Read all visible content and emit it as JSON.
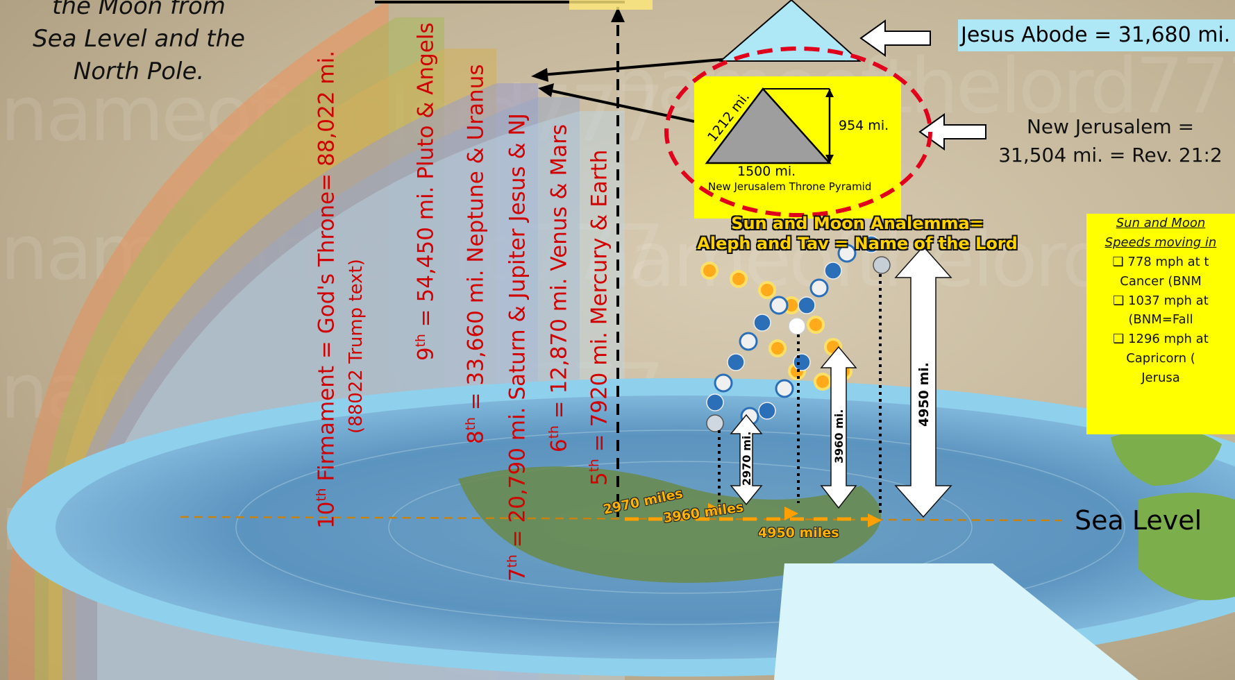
{
  "note_moon": {
    "line1": "the Moon from",
    "line2": "Sea Level and the",
    "line3": "North Pole."
  },
  "watermark": "nameofthelord777",
  "bands": [
    {
      "level": "10",
      "text": "Firmament = God's Throne= 88,022 mi.",
      "color": "#e59a6b"
    },
    {
      "level": "9",
      "text": "= 54,450 mi. Pluto & Angels",
      "color": "#9bbf8a"
    },
    {
      "level": "8",
      "text": "= 33,660 mi. Neptune & Uranus",
      "color": "#d8b86d"
    },
    {
      "level": "7",
      "text": "= 20,790 mi. Saturn & Jupiter Jesus & NJ",
      "color": "#a79fc9"
    },
    {
      "level": "6",
      "text": "= 12,870 mi. Venus & Mars",
      "color": "#9db0cf"
    },
    {
      "level": "5",
      "text": "= 7920 mi. Mercury & Earth",
      "color": "#b6d4e6"
    }
  ],
  "band_sublabel": "(88022 Trump text)",
  "level_suffix": "th",
  "jesus_abode": "Jesus Abode = 31,680 mi.",
  "new_jerusalem": {
    "line1": "New Jerusalem =",
    "line2": "31,504 mi. = Rev. 21:2"
  },
  "pyramid": {
    "side": "1212 mi.",
    "height": "954 mi.",
    "base": "1500 mi.",
    "caption": "New Jerusalem Throne Pyramid"
  },
  "analemma": {
    "line1": "Sun and Moon Analemma=",
    "line2": "Aleph and Tav = Name of the Lord"
  },
  "speeds": {
    "heading1": "Sun and Moon",
    "heading2": "Speeds moving in",
    "item1a": "❑ 778 mph at t",
    "item1b": "Cancer (BNM",
    "item2a": "❑ 1037 mph at",
    "item2b": "(BNM=Fall",
    "item3a": "❑ 1296 mph at",
    "item3b": "Capricorn (",
    "item3c": "Jerusa"
  },
  "heights": {
    "h1": "2970 mi.",
    "h2": "3960 mi.",
    "h3": "4950 mi."
  },
  "ground": {
    "d1": "2970 miles",
    "d2": "3960 miles",
    "d3": "4950 miles"
  },
  "sea_level": "Sea Level",
  "colors": {
    "band_text": "#d00000",
    "highlight": "#ffff00",
    "sky_box": "#aee8f7",
    "dash": "#e0001b"
  }
}
